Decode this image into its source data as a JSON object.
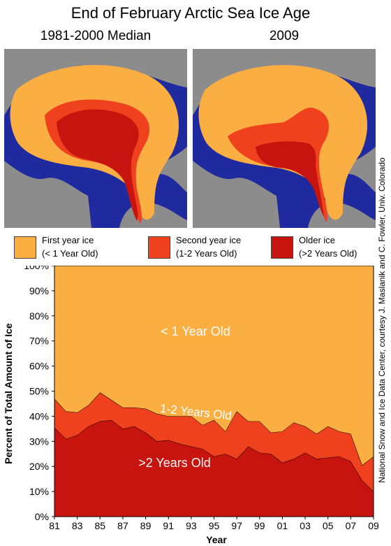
{
  "title": "End of February Arctic Sea Ice Age",
  "maps": {
    "left_label": "1981-2000 Median",
    "right_label": "2009"
  },
  "legend": [
    {
      "line1": "First year ice",
      "line2": "(< 1 Year Old)",
      "color": "#FBAF43"
    },
    {
      "line1": "Second year ice",
      "line2": "(1-2 Years Old)",
      "color": "#F0411E"
    },
    {
      "line1": "Older ice",
      "line2": "(>2 Years Old)",
      "color": "#C8140F"
    }
  ],
  "credit": "National Snow and Ice Data Center, courtesy J. Maslanik and C. Fowler, Univ. Colorado",
  "colors": {
    "first_year": "#FBAF43",
    "second_year": "#F0411E",
    "older": "#C8140F",
    "land": "#8C8C8C",
    "ocean": "#1E2A9E"
  },
  "chart_data": {
    "type": "area",
    "stacked": true,
    "xlabel": "Year",
    "ylabel": "Percent of Total Amount of Ice",
    "ylim": [
      0,
      100
    ],
    "yticks": [
      "0%",
      "10%",
      "20%",
      "30%",
      "40%",
      "50%",
      "60%",
      "70%",
      "80%",
      "90%",
      "100%"
    ],
    "xticks": [
      "81",
      "83",
      "85",
      "87",
      "89",
      "91",
      "93",
      "95",
      "97",
      "99",
      "01",
      "03",
      "05",
      "07",
      "09"
    ],
    "x": [
      1981,
      1982,
      1983,
      1984,
      1985,
      1986,
      1987,
      1988,
      1989,
      1990,
      1991,
      1992,
      1993,
      1994,
      1995,
      1996,
      1997,
      1998,
      1999,
      2000,
      2001,
      2002,
      2003,
      2004,
      2005,
      2006,
      2007,
      2008,
      2009
    ],
    "series": [
      {
        "name": ">2 Years Old",
        "color": "#C8140F",
        "values": [
          35.5,
          31,
          32.5,
          36,
          38,
          38.5,
          35,
          36,
          33.5,
          30,
          30.5,
          29,
          28,
          27,
          24,
          25,
          23,
          28,
          25.5,
          25,
          21.5,
          23,
          25.5,
          23,
          23.5,
          24,
          22,
          14.5,
          10
        ]
      },
      {
        "name": "1-2 Years Old",
        "color": "#F0411E",
        "values": [
          11.5,
          11,
          9,
          8.5,
          11.5,
          8,
          8.5,
          7.5,
          9.5,
          11,
          9.5,
          11,
          12,
          9.5,
          14.5,
          9,
          19,
          10,
          12.5,
          8.5,
          12.5,
          14.5,
          10.5,
          10,
          12.5,
          10,
          11,
          6,
          14
        ]
      },
      {
        "name": "< 1 Year Old",
        "color": "#FBAF43",
        "values": [
          53,
          58,
          58.5,
          55.5,
          50.5,
          53.5,
          56.5,
          56.5,
          57,
          59,
          60,
          60,
          60,
          63.5,
          61.5,
          66,
          58,
          62,
          62,
          66.5,
          66,
          62.5,
          64,
          67,
          64,
          66,
          67,
          79.5,
          76
        ]
      }
    ],
    "area_labels": [
      "< 1 Year Old",
      "1-2 Years Old",
      ">2 Years Old"
    ]
  }
}
